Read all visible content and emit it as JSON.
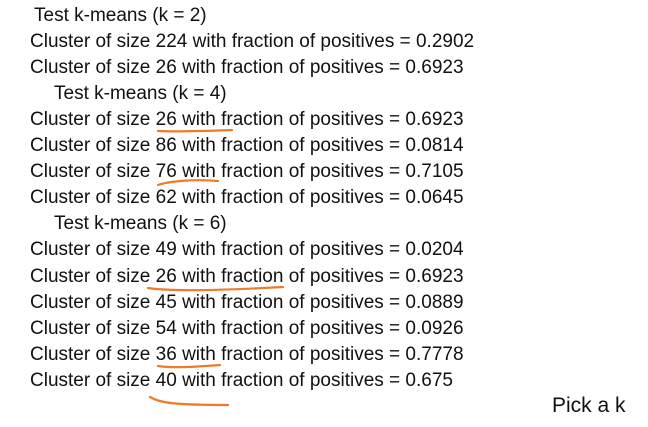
{
  "sections": [
    {
      "header": "Test k-means (k = 2)",
      "lines": [
        "Cluster of size 224 with fraction of positives = 0.2902",
        "Cluster of size 26 with fraction of positives = 0.6923"
      ]
    },
    {
      "header": "Test k-means (k = 4)",
      "lines": [
        "Cluster of size 26 with fraction of positives = 0.6923",
        "Cluster of size 86 with fraction of positives = 0.0814",
        "Cluster of size 76 with fraction of positives = 0.7105",
        "Cluster of size 62 with fraction of positives = 0.0645"
      ]
    },
    {
      "header": "Test k-means (k = 6)",
      "lines": [
        "Cluster of size 49 with fraction of positives = 0.0204",
        "Cluster of size 26 with fraction of positives = 0.6923",
        "Cluster of size 45 with fraction of positives = 0.0889",
        "Cluster of size 54 with fraction of positives = 0.0926",
        "Cluster of size 36 with fraction of positives = 0.7778",
        "Cluster of size 40 with fraction of positives = 0.675"
      ]
    }
  ],
  "note": "Pick a k",
  "colors": {
    "text": "#111111",
    "annotation": "#f07a2a"
  }
}
